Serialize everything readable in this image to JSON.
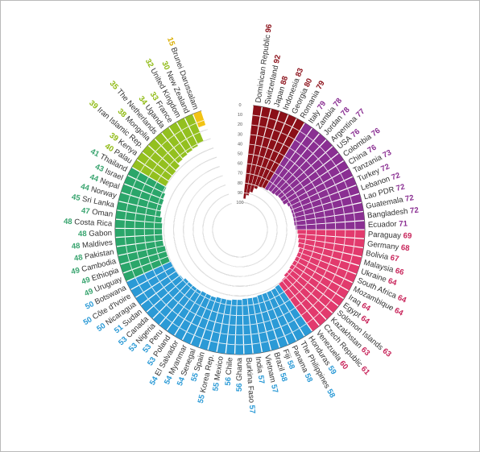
{
  "chart_data": {
    "type": "radial_bar",
    "scale": {
      "min": 0,
      "max": 100,
      "ticks": [
        "0",
        "10",
        "20",
        "30",
        "40",
        "50",
        "60",
        "70",
        "80",
        "90",
        "100"
      ]
    },
    "categories": [
      "Dominican Republic",
      "Switzerland",
      "Japan",
      "Indonesia",
      "Georgia",
      "Romania",
      "Italy",
      "Zambia",
      "Jordan",
      "Argentina",
      "USA",
      "Colombia",
      "China",
      "Tanzania",
      "Turkey",
      "Lebanon",
      "Lao PDR",
      "Guatemala",
      "Bangladesh",
      "Ecuador",
      "Paraguay",
      "Germany",
      "Bolivia",
      "Malaysia",
      "Ukraine",
      "South Africa",
      "Mozambique",
      "Iraq",
      "Egypt",
      "Solomon Islands",
      "Kazakhstan",
      "Czech Republic",
      "Venezuela",
      "Honduras",
      "The Philippines",
      "Panama",
      "Fiji",
      "Brazil",
      "Vietnam",
      "India",
      "Burkina Faso",
      "Ghana",
      "Chile",
      "Mexico",
      "Korea Rep.",
      "Spain",
      "Senegal",
      "Myanmar",
      "El Salvador",
      "Poland",
      "Peru",
      "Nigeria",
      "Canada",
      "Sudan",
      "Nicaragua",
      "Côte d'Ivoire",
      "Botswana",
      "Uruguay",
      "Ethiopia",
      "Cambodia",
      "Pakistan",
      "Maldives",
      "Gabon",
      "Costa Rica",
      "Oman",
      "Sri Lanka",
      "Norway",
      "Nepal",
      "Israel",
      "Thailand",
      "Palau",
      "Kenya",
      "Iran Islamic Rep.",
      "Mongolia",
      "The Netherlands",
      "Uganda",
      "France",
      "United Kingdom",
      "New Zealand",
      "Brunei Darussalam"
    ],
    "values": [
      96,
      92,
      88,
      83,
      80,
      79,
      79,
      78,
      78,
      77,
      76,
      76,
      76,
      73,
      72,
      72,
      72,
      72,
      72,
      71,
      69,
      68,
      67,
      66,
      64,
      64,
      64,
      64,
      64,
      63,
      63,
      61,
      60,
      59,
      58,
      58,
      58,
      58,
      57,
      57,
      57,
      56,
      56,
      55,
      55,
      55,
      54,
      54,
      54,
      53,
      53,
      53,
      53,
      51,
      50,
      50,
      50,
      49,
      49,
      49,
      48,
      48,
      48,
      48,
      47,
      45,
      44,
      44,
      43,
      41,
      40,
      39,
      39,
      38,
      35,
      34,
      33,
      32,
      30,
      15
    ],
    "group_colors": [
      "#8b0f18",
      "#8a2f92",
      "#e23a6d",
      "#2b9ad6",
      "#2aa66a",
      "#93c01f",
      "#f2c314"
    ],
    "label_colors": [
      "#8b0f18",
      "#8a2f92",
      "#c8245a",
      "#2b9ad6",
      "#3aa570",
      "#8fba12",
      "#d9ad00"
    ],
    "group_sizes": [
      6,
      14,
      13,
      24,
      13,
      9,
      1
    ]
  }
}
